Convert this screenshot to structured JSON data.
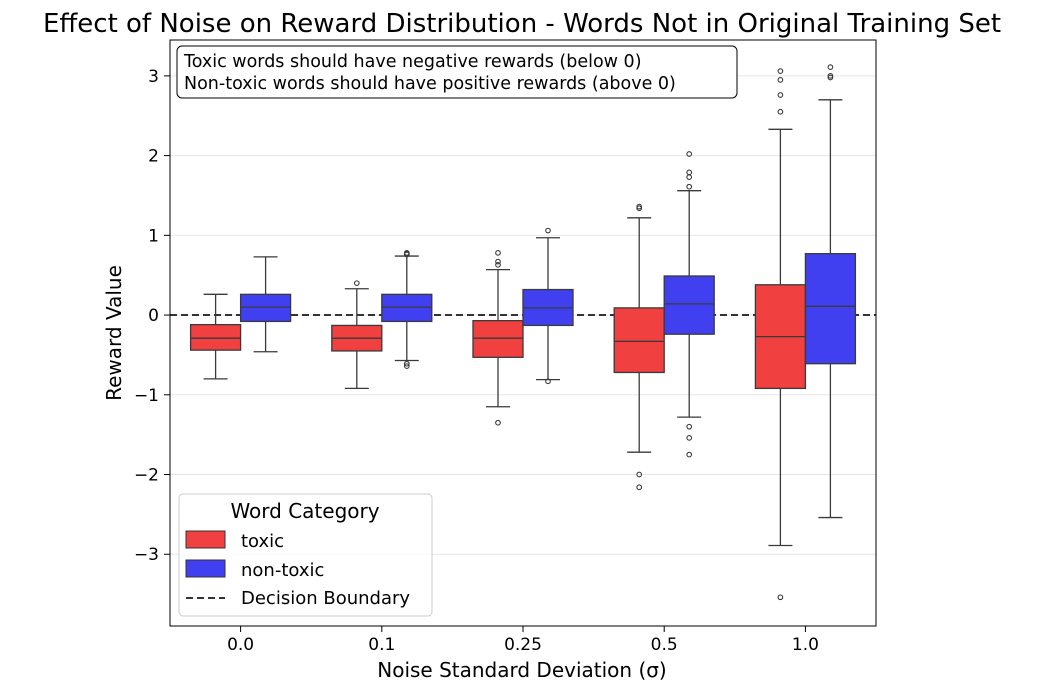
{
  "chart_data": {
    "type": "boxplot",
    "title": "Effect of Noise on Reward Distribution - Words Not in Original Training Set",
    "xlabel": "Noise Standard Deviation (σ)",
    "ylabel": "Reward Value",
    "ylim": [
      -3.9,
      3.45
    ],
    "yticks": [
      -3,
      -2,
      -1,
      0,
      1,
      2,
      3
    ],
    "ytick_labels": [
      "−3",
      "−2",
      "−1",
      "0",
      "1",
      "2",
      "3"
    ],
    "grid": "y",
    "categories": [
      "0.0",
      "0.1",
      "0.25",
      "0.5",
      "1.0"
    ],
    "reference_line": {
      "y": 0,
      "label": "Decision Boundary",
      "style": "dashed",
      "color": "#333333"
    },
    "annotation": {
      "lines": [
        "Toxic words should have negative rewards (below 0)",
        "Non-toxic words should have positive rewards (above 0)"
      ],
      "placement": "top-left"
    },
    "legend": {
      "title": "Word Category",
      "placement": "lower-left"
    },
    "series": [
      {
        "name": "toxic",
        "color": "#f04040",
        "boxes": [
          {
            "whisker_low": -0.8,
            "q1": -0.44,
            "median": -0.29,
            "q3": -0.12,
            "whisker_high": 0.26,
            "outliers": []
          },
          {
            "whisker_low": -0.92,
            "q1": -0.45,
            "median": -0.29,
            "q3": -0.13,
            "whisker_high": 0.33,
            "outliers": [
              0.4
            ]
          },
          {
            "whisker_low": -1.15,
            "q1": -0.53,
            "median": -0.29,
            "q3": -0.07,
            "whisker_high": 0.57,
            "outliers": [
              0.63,
              0.67,
              0.78,
              -1.35
            ]
          },
          {
            "whisker_low": -1.72,
            "q1": -0.72,
            "median": -0.33,
            "q3": 0.09,
            "whisker_high": 1.22,
            "outliers": [
              1.34,
              1.36,
              -2.0,
              -2.16
            ]
          },
          {
            "whisker_low": -2.89,
            "q1": -0.92,
            "median": -0.27,
            "q3": 0.38,
            "whisker_high": 2.33,
            "outliers": [
              2.55,
              2.76,
              2.95,
              3.06,
              -3.54
            ]
          }
        ]
      },
      {
        "name": "non-toxic",
        "color": "#4040f0",
        "boxes": [
          {
            "whisker_low": -0.46,
            "q1": -0.08,
            "median": 0.1,
            "q3": 0.26,
            "whisker_high": 0.73,
            "outliers": []
          },
          {
            "whisker_low": -0.57,
            "q1": -0.08,
            "median": 0.1,
            "q3": 0.26,
            "whisker_high": 0.74,
            "outliers": [
              0.76,
              0.77,
              0.78,
              -0.61,
              -0.64
            ]
          },
          {
            "whisker_low": -0.81,
            "q1": -0.13,
            "median": 0.09,
            "q3": 0.32,
            "whisker_high": 0.97,
            "outliers": [
              1.06,
              -0.83
            ]
          },
          {
            "whisker_low": -1.28,
            "q1": -0.24,
            "median": 0.14,
            "q3": 0.49,
            "whisker_high": 1.56,
            "outliers": [
              1.61,
              1.73,
              1.79,
              2.02,
              -1.4,
              -1.54,
              -1.75
            ]
          },
          {
            "whisker_low": -2.54,
            "q1": -0.61,
            "median": 0.11,
            "q3": 0.77,
            "whisker_high": 2.7,
            "outliers": [
              2.98,
              3.0,
              3.11
            ]
          }
        ]
      }
    ]
  }
}
